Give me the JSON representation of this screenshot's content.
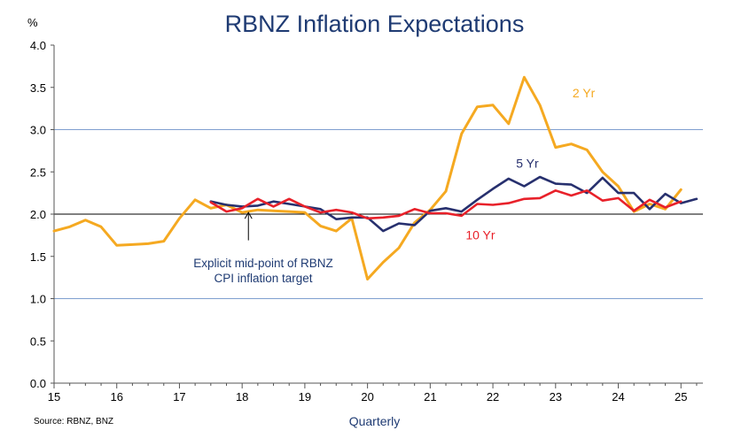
{
  "chart_data": {
    "type": "line",
    "title": "RBNZ Inflation Expectations",
    "unit_label": "%",
    "xlabel": "Quarterly",
    "source": "Source: RBNZ, BNZ",
    "x_start": 2015.0,
    "x_step": 0.25,
    "xlim": [
      2015,
      2025.35
    ],
    "ylim": [
      0,
      4
    ],
    "y_ticks": [
      "0.0",
      "0.5",
      "1.0",
      "1.5",
      "2.0",
      "2.5",
      "3.0",
      "3.5",
      "4.0"
    ],
    "x_ticks": [
      {
        "value": 2015,
        "label": "15"
      },
      {
        "value": 2016,
        "label": "16"
      },
      {
        "value": 2017,
        "label": "17"
      },
      {
        "value": 2018,
        "label": "18"
      },
      {
        "value": 2019,
        "label": "19"
      },
      {
        "value": 2020,
        "label": "20"
      },
      {
        "value": 2021,
        "label": "21"
      },
      {
        "value": 2022,
        "label": "22"
      },
      {
        "value": 2023,
        "label": "23"
      },
      {
        "value": 2024,
        "label": "24"
      },
      {
        "value": 2025,
        "label": "25"
      }
    ],
    "reference_lines": [
      1.0,
      3.0
    ],
    "target_line": 2.0,
    "colors": {
      "reference": "#7f9fcf",
      "target": "#000000",
      "axis": "#555555"
    },
    "annotation": {
      "lines": [
        "Explicit mid-point of RBNZ",
        "CPI inflation target"
      ],
      "arrow_x": 2018.1,
      "arrow_from_y": 1.69,
      "arrow_to_y": 2.02
    },
    "series": [
      {
        "name": "2 Yr",
        "color": "#f5a921",
        "label_x": 2023.45,
        "label_y": 3.38,
        "start": 2015.0,
        "values": [
          1.8,
          1.85,
          1.93,
          1.85,
          1.63,
          1.64,
          1.65,
          1.68,
          1.95,
          2.17,
          2.07,
          2.11,
          2.02,
          2.05,
          2.04,
          2.03,
          2.02,
          1.86,
          1.8,
          1.95,
          1.23,
          1.43,
          1.6,
          1.9,
          2.05,
          2.27,
          2.95,
          3.27,
          3.29,
          3.07,
          3.62,
          3.29,
          2.79,
          2.83,
          2.76,
          2.5,
          2.33,
          2.03,
          2.12,
          2.06,
          2.29
        ]
      },
      {
        "name": "5 Yr",
        "color": "#27306e",
        "label_x": 2022.55,
        "label_y": 2.55,
        "start": 2017.5,
        "values": [
          2.15,
          2.11,
          2.09,
          2.1,
          2.15,
          2.12,
          2.09,
          2.06,
          1.94,
          1.96,
          1.96,
          1.8,
          1.89,
          1.87,
          2.04,
          2.07,
          2.03,
          2.17,
          2.3,
          2.42,
          2.33,
          2.44,
          2.36,
          2.35,
          2.25,
          2.43,
          2.25,
          2.25,
          2.06,
          2.24,
          2.13,
          2.18
        ]
      },
      {
        "name": "10 Yr",
        "color": "#e8212a",
        "label_x": 2021.8,
        "label_y": 1.7,
        "start": 2017.5,
        "values": [
          2.14,
          2.03,
          2.07,
          2.18,
          2.09,
          2.18,
          2.09,
          2.02,
          2.05,
          2.02,
          1.95,
          1.96,
          1.98,
          2.06,
          2.01,
          2.01,
          1.98,
          2.12,
          2.11,
          2.13,
          2.18,
          2.19,
          2.28,
          2.22,
          2.28,
          2.16,
          2.19,
          2.04,
          2.17,
          2.08,
          2.15
        ]
      }
    ]
  }
}
